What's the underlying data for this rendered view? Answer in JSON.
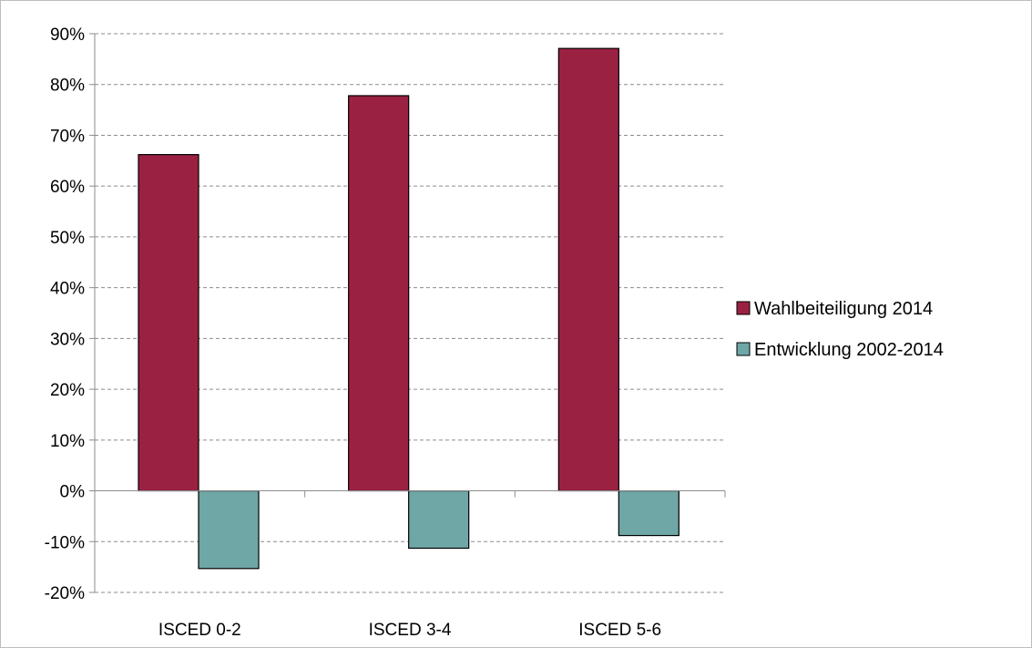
{
  "chart_data": {
    "type": "bar",
    "title": "",
    "xlabel": "",
    "ylabel": "",
    "categories": [
      "ISCED 0-2",
      "ISCED 3-4",
      "ISCED 5-6"
    ],
    "series": [
      {
        "name": "Wahlbeiteiligung 2014",
        "values": [
          66.2,
          77.8,
          87.1
        ],
        "color": "#9b2143"
      },
      {
        "name": "Entwicklung 2002-2014",
        "values": [
          -15.3,
          -11.3,
          -8.8
        ],
        "color": "#6fa6a6"
      }
    ],
    "ylim": [
      -20,
      90
    ],
    "yticks": [
      90,
      80,
      70,
      60,
      50,
      40,
      30,
      20,
      10,
      0,
      -10,
      -20
    ],
    "ytick_labels": [
      "90%",
      "80%",
      "70%",
      "60%",
      "50%",
      "40%",
      "30%",
      "20%",
      "10%",
      "0%",
      "-10%",
      "-20%"
    ],
    "grid": true,
    "legend_position": "right"
  }
}
